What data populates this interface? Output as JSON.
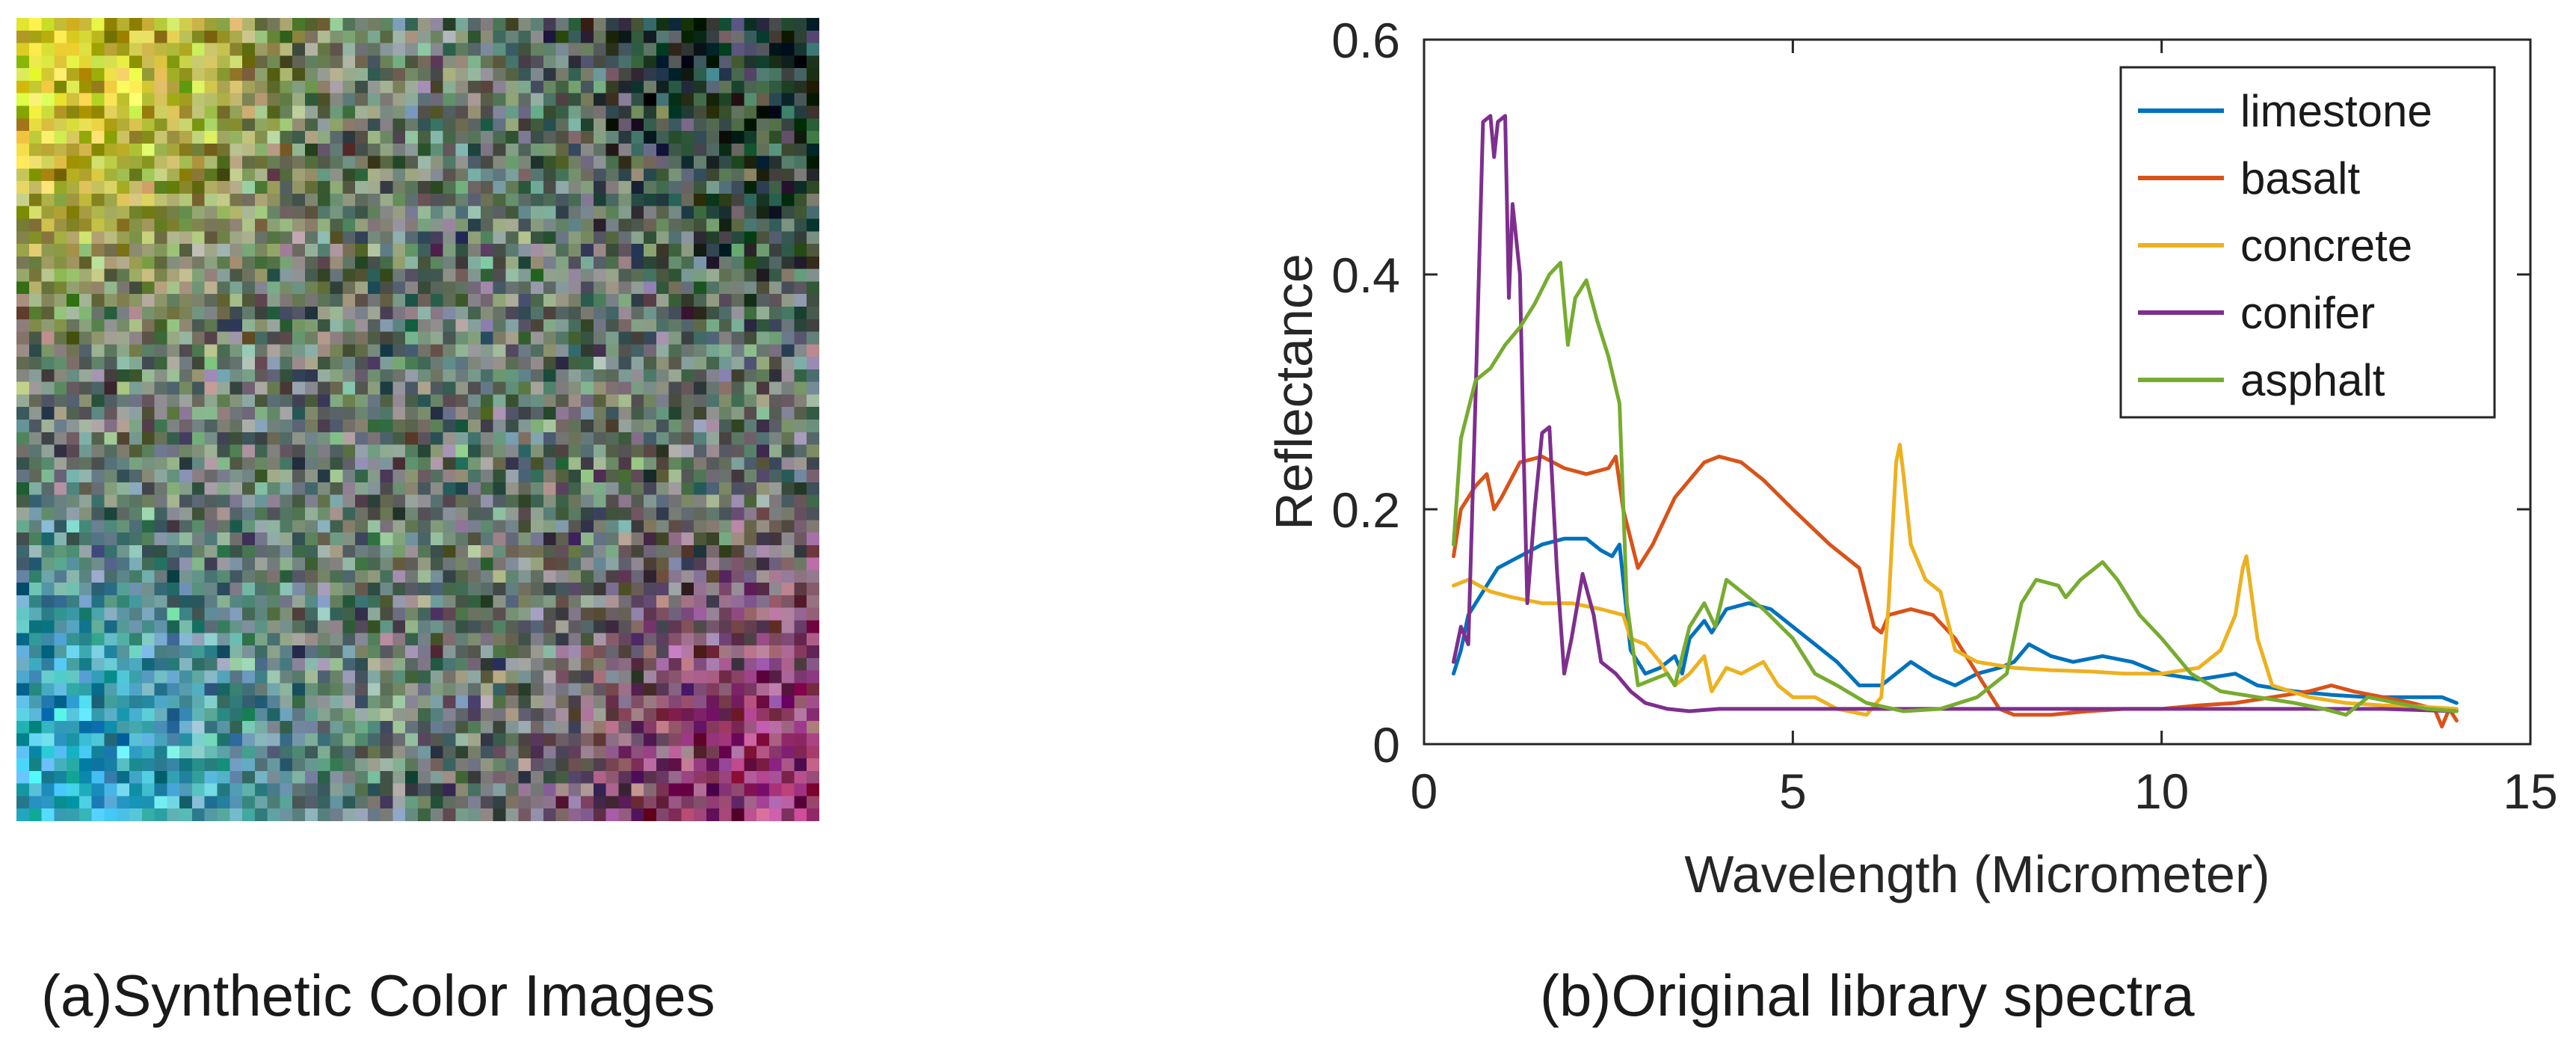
{
  "panel_a": {
    "caption": "(a)Synthetic Color Images",
    "image": {
      "type": "synthetic-hyperspectral-color-composite",
      "grid": 64,
      "regions": [
        {
          "name": "yellow-region",
          "corner": "top-left",
          "color": "#f2e010"
        },
        {
          "name": "dark-region",
          "corner": "top-right",
          "color": "#0f2a20"
        },
        {
          "name": "cyan-region",
          "corner": "bottom-left",
          "color": "#22c4f0"
        },
        {
          "name": "magenta-region",
          "corner": "bottom-right",
          "color": "#a01a70"
        },
        {
          "name": "mixed-region",
          "corner": "center",
          "color": "#6a7a70"
        }
      ]
    }
  },
  "panel_b": {
    "caption": "(b)Original library spectra"
  },
  "chart_data": {
    "type": "line",
    "title": "",
    "xlabel": "Wavelength (Micrometer)",
    "ylabel": "Reflectance",
    "xlim": [
      0,
      15
    ],
    "ylim": [
      0,
      0.6
    ],
    "xticks": [
      0,
      5,
      10,
      15
    ],
    "xtick_labels": [
      "0",
      "5",
      "10",
      "15"
    ],
    "yticks": [
      0,
      0.2,
      0.4,
      0.6
    ],
    "ytick_labels": [
      "0",
      "0.2",
      "0.4",
      "0.6"
    ],
    "grid": false,
    "legend_position": "top-right",
    "series": [
      {
        "name": "limestone",
        "color": "#0072bd",
        "points": [
          [
            0.4,
            0.06
          ],
          [
            0.5,
            0.08
          ],
          [
            0.6,
            0.11
          ],
          [
            0.8,
            0.13
          ],
          [
            1.0,
            0.15
          ],
          [
            1.3,
            0.16
          ],
          [
            1.6,
            0.17
          ],
          [
            1.9,
            0.175
          ],
          [
            2.2,
            0.175
          ],
          [
            2.4,
            0.165
          ],
          [
            2.55,
            0.16
          ],
          [
            2.65,
            0.17
          ],
          [
            2.7,
            0.14
          ],
          [
            2.8,
            0.08
          ],
          [
            3.0,
            0.06
          ],
          [
            3.2,
            0.065
          ],
          [
            3.4,
            0.075
          ],
          [
            3.5,
            0.06
          ],
          [
            3.6,
            0.09
          ],
          [
            3.8,
            0.105
          ],
          [
            3.9,
            0.095
          ],
          [
            4.1,
            0.115
          ],
          [
            4.4,
            0.12
          ],
          [
            4.7,
            0.115
          ],
          [
            5.0,
            0.1
          ],
          [
            5.3,
            0.085
          ],
          [
            5.6,
            0.07
          ],
          [
            5.9,
            0.05
          ],
          [
            6.2,
            0.05
          ],
          [
            6.4,
            0.06
          ],
          [
            6.6,
            0.07
          ],
          [
            6.9,
            0.058
          ],
          [
            7.2,
            0.05
          ],
          [
            7.5,
            0.06
          ],
          [
            7.8,
            0.065
          ],
          [
            8.0,
            0.07
          ],
          [
            8.2,
            0.085
          ],
          [
            8.5,
            0.075
          ],
          [
            8.8,
            0.07
          ],
          [
            9.2,
            0.075
          ],
          [
            9.6,
            0.07
          ],
          [
            10.0,
            0.06
          ],
          [
            10.5,
            0.055
          ],
          [
            11.0,
            0.06
          ],
          [
            11.3,
            0.05
          ],
          [
            11.8,
            0.045
          ],
          [
            12.3,
            0.042
          ],
          [
            12.8,
            0.04
          ],
          [
            13.3,
            0.04
          ],
          [
            13.8,
            0.04
          ],
          [
            14.0,
            0.035
          ]
        ]
      },
      {
        "name": "basalt",
        "color": "#d95319",
        "points": [
          [
            0.4,
            0.16
          ],
          [
            0.5,
            0.2
          ],
          [
            0.7,
            0.22
          ],
          [
            0.85,
            0.23
          ],
          [
            0.95,
            0.2
          ],
          [
            1.05,
            0.21
          ],
          [
            1.3,
            0.24
          ],
          [
            1.6,
            0.245
          ],
          [
            1.9,
            0.235
          ],
          [
            2.2,
            0.23
          ],
          [
            2.5,
            0.235
          ],
          [
            2.6,
            0.245
          ],
          [
            2.7,
            0.2
          ],
          [
            2.9,
            0.15
          ],
          [
            3.1,
            0.17
          ],
          [
            3.4,
            0.21
          ],
          [
            3.8,
            0.24
          ],
          [
            4.0,
            0.245
          ],
          [
            4.3,
            0.24
          ],
          [
            4.6,
            0.225
          ],
          [
            5.0,
            0.2
          ],
          [
            5.5,
            0.17
          ],
          [
            5.9,
            0.15
          ],
          [
            6.1,
            0.1
          ],
          [
            6.2,
            0.095
          ],
          [
            6.3,
            0.11
          ],
          [
            6.6,
            0.115
          ],
          [
            6.9,
            0.11
          ],
          [
            7.2,
            0.09
          ],
          [
            7.5,
            0.06
          ],
          [
            7.8,
            0.03
          ],
          [
            8.0,
            0.025
          ],
          [
            8.5,
            0.025
          ],
          [
            9.0,
            0.028
          ],
          [
            9.5,
            0.03
          ],
          [
            10.0,
            0.03
          ],
          [
            10.5,
            0.033
          ],
          [
            11.0,
            0.035
          ],
          [
            11.5,
            0.04
          ],
          [
            12.0,
            0.045
          ],
          [
            12.3,
            0.05
          ],
          [
            12.6,
            0.045
          ],
          [
            13.0,
            0.04
          ],
          [
            13.4,
            0.035
          ],
          [
            13.7,
            0.03
          ],
          [
            13.8,
            0.015
          ],
          [
            13.9,
            0.03
          ],
          [
            14.0,
            0.02
          ]
        ]
      },
      {
        "name": "concrete",
        "color": "#edb120",
        "points": [
          [
            0.4,
            0.135
          ],
          [
            0.6,
            0.14
          ],
          [
            0.9,
            0.13
          ],
          [
            1.2,
            0.125
          ],
          [
            1.6,
            0.12
          ],
          [
            2.0,
            0.12
          ],
          [
            2.4,
            0.115
          ],
          [
            2.7,
            0.11
          ],
          [
            2.8,
            0.09
          ],
          [
            3.0,
            0.085
          ],
          [
            3.2,
            0.07
          ],
          [
            3.4,
            0.05
          ],
          [
            3.6,
            0.06
          ],
          [
            3.8,
            0.075
          ],
          [
            3.9,
            0.045
          ],
          [
            4.1,
            0.065
          ],
          [
            4.3,
            0.06
          ],
          [
            4.6,
            0.07
          ],
          [
            4.8,
            0.05
          ],
          [
            5.0,
            0.04
          ],
          [
            5.3,
            0.04
          ],
          [
            5.6,
            0.03
          ],
          [
            6.0,
            0.025
          ],
          [
            6.2,
            0.04
          ],
          [
            6.3,
            0.12
          ],
          [
            6.4,
            0.24
          ],
          [
            6.45,
            0.255
          ],
          [
            6.5,
            0.23
          ],
          [
            6.6,
            0.17
          ],
          [
            6.8,
            0.14
          ],
          [
            7.0,
            0.13
          ],
          [
            7.2,
            0.08
          ],
          [
            7.5,
            0.07
          ],
          [
            8.0,
            0.065
          ],
          [
            8.5,
            0.063
          ],
          [
            9.0,
            0.062
          ],
          [
            9.5,
            0.06
          ],
          [
            10.0,
            0.06
          ],
          [
            10.5,
            0.065
          ],
          [
            10.8,
            0.08
          ],
          [
            11.0,
            0.11
          ],
          [
            11.1,
            0.15
          ],
          [
            11.15,
            0.16
          ],
          [
            11.3,
            0.09
          ],
          [
            11.5,
            0.05
          ],
          [
            12.0,
            0.04
          ],
          [
            12.5,
            0.035
          ],
          [
            13.0,
            0.033
          ],
          [
            13.5,
            0.032
          ],
          [
            14.0,
            0.03
          ]
        ]
      },
      {
        "name": "conifer",
        "color": "#7e2f8e",
        "points": [
          [
            0.4,
            0.07
          ],
          [
            0.5,
            0.1
          ],
          [
            0.6,
            0.085
          ],
          [
            0.7,
            0.3
          ],
          [
            0.8,
            0.53
          ],
          [
            0.9,
            0.535
          ],
          [
            0.95,
            0.5
          ],
          [
            1.0,
            0.53
          ],
          [
            1.1,
            0.535
          ],
          [
            1.15,
            0.38
          ],
          [
            1.2,
            0.46
          ],
          [
            1.3,
            0.4
          ],
          [
            1.35,
            0.25
          ],
          [
            1.4,
            0.12
          ],
          [
            1.5,
            0.2
          ],
          [
            1.6,
            0.265
          ],
          [
            1.7,
            0.27
          ],
          [
            1.8,
            0.15
          ],
          [
            1.9,
            0.06
          ],
          [
            2.0,
            0.09
          ],
          [
            2.15,
            0.145
          ],
          [
            2.3,
            0.11
          ],
          [
            2.4,
            0.07
          ],
          [
            2.6,
            0.06
          ],
          [
            2.8,
            0.045
          ],
          [
            3.0,
            0.035
          ],
          [
            3.3,
            0.03
          ],
          [
            3.6,
            0.028
          ],
          [
            4.0,
            0.03
          ],
          [
            5.0,
            0.03
          ],
          [
            6.0,
            0.03
          ],
          [
            7.0,
            0.03
          ],
          [
            8.0,
            0.03
          ],
          [
            9.0,
            0.03
          ],
          [
            10.0,
            0.03
          ],
          [
            11.0,
            0.03
          ],
          [
            12.0,
            0.03
          ],
          [
            13.0,
            0.03
          ],
          [
            14.0,
            0.028
          ]
        ]
      },
      {
        "name": "asphalt",
        "color": "#77ac30",
        "points": [
          [
            0.4,
            0.17
          ],
          [
            0.5,
            0.26
          ],
          [
            0.7,
            0.31
          ],
          [
            0.9,
            0.32
          ],
          [
            1.1,
            0.34
          ],
          [
            1.3,
            0.355
          ],
          [
            1.5,
            0.375
          ],
          [
            1.7,
            0.4
          ],
          [
            1.85,
            0.41
          ],
          [
            1.95,
            0.34
          ],
          [
            2.05,
            0.38
          ],
          [
            2.2,
            0.395
          ],
          [
            2.35,
            0.36
          ],
          [
            2.5,
            0.33
          ],
          [
            2.65,
            0.29
          ],
          [
            2.75,
            0.12
          ],
          [
            2.9,
            0.05
          ],
          [
            3.1,
            0.055
          ],
          [
            3.3,
            0.06
          ],
          [
            3.4,
            0.05
          ],
          [
            3.6,
            0.1
          ],
          [
            3.8,
            0.12
          ],
          [
            3.95,
            0.1
          ],
          [
            4.1,
            0.14
          ],
          [
            4.3,
            0.13
          ],
          [
            4.6,
            0.115
          ],
          [
            5.0,
            0.09
          ],
          [
            5.3,
            0.06
          ],
          [
            5.6,
            0.05
          ],
          [
            6.0,
            0.035
          ],
          [
            6.5,
            0.028
          ],
          [
            7.0,
            0.03
          ],
          [
            7.5,
            0.04
          ],
          [
            7.9,
            0.06
          ],
          [
            8.1,
            0.12
          ],
          [
            8.3,
            0.14
          ],
          [
            8.6,
            0.135
          ],
          [
            8.7,
            0.125
          ],
          [
            8.9,
            0.14
          ],
          [
            9.2,
            0.155
          ],
          [
            9.4,
            0.14
          ],
          [
            9.7,
            0.11
          ],
          [
            10.0,
            0.09
          ],
          [
            10.4,
            0.06
          ],
          [
            10.8,
            0.045
          ],
          [
            11.3,
            0.04
          ],
          [
            11.8,
            0.035
          ],
          [
            12.2,
            0.03
          ],
          [
            12.5,
            0.025
          ],
          [
            12.8,
            0.04
          ],
          [
            13.2,
            0.035
          ],
          [
            13.6,
            0.03
          ],
          [
            14.0,
            0.028
          ]
        ]
      }
    ]
  }
}
